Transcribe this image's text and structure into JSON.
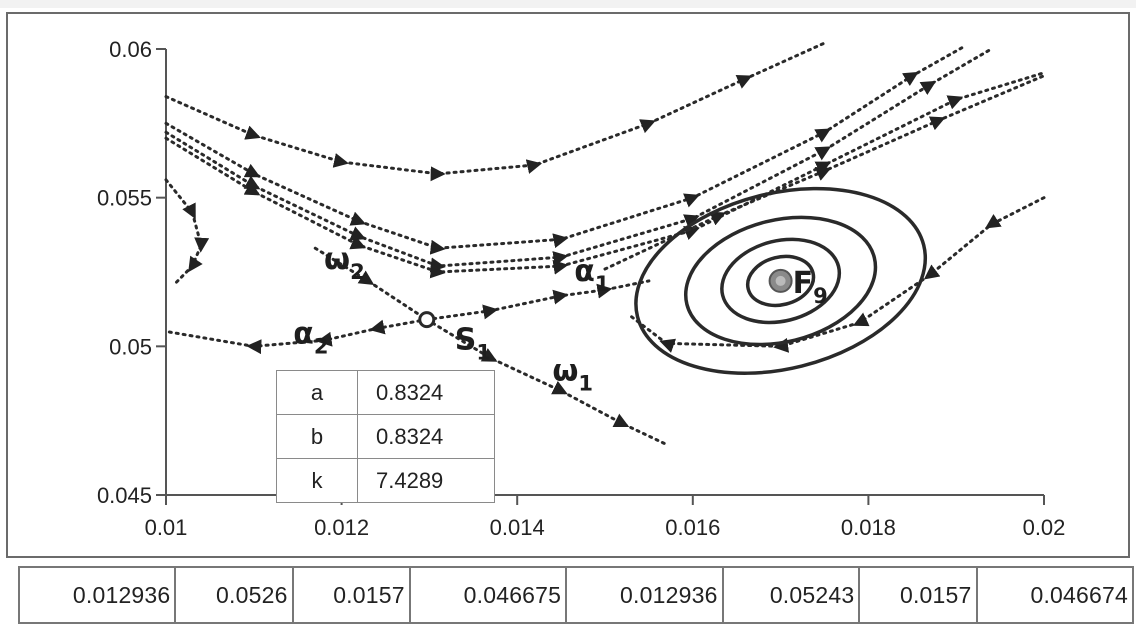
{
  "chart_data": {
    "type": "scatter",
    "xlim": [
      0.01,
      0.02
    ],
    "ylim": [
      0.045,
      0.06
    ],
    "x_ticks": [
      "0.01",
      "0.012",
      "0.014",
      "0.016",
      "0.018",
      "0.02"
    ],
    "y_ticks": [
      "0.06",
      "0.055",
      "0.05",
      "0.045"
    ],
    "grid": false,
    "saddle": {
      "label": "S",
      "subscript": "1",
      "x": 0.01297,
      "y": 0.0509
    },
    "focus": {
      "label": "F",
      "subscript": "9",
      "x": 0.017,
      "y": 0.0522
    },
    "separatrix_labels": [
      {
        "label": "ω",
        "subscript": "2",
        "x": 0.0118,
        "y": 0.0526
      },
      {
        "label": "ω",
        "subscript": "1",
        "x": 0.0144,
        "y": 0.04885
      },
      {
        "label": "α",
        "subscript": "1",
        "x": 0.01465,
        "y": 0.0522
      },
      {
        "label": "α",
        "subscript": "2",
        "x": 0.01145,
        "y": 0.0501
      }
    ],
    "trajectories": [
      {
        "name": "omega2",
        "points": [
          [
            0.0117,
            0.0533
          ],
          [
            0.0123,
            0.0522
          ],
          [
            0.01297,
            0.0509
          ]
        ]
      },
      {
        "name": "omega1",
        "points": [
          [
            0.01297,
            0.0509
          ],
          [
            0.0137,
            0.0496
          ],
          [
            0.0145,
            0.0485
          ],
          [
            0.0152,
            0.0474
          ],
          [
            0.0157,
            0.0467
          ]
        ]
      },
      {
        "name": "alpha2",
        "points": [
          [
            0.01297,
            0.0509
          ],
          [
            0.0124,
            0.0506
          ],
          [
            0.0118,
            0.0502
          ],
          [
            0.011,
            0.05
          ],
          [
            0.01,
            0.0505
          ]
        ]
      },
      {
        "name": "alpha1",
        "points": [
          [
            0.01297,
            0.0509
          ],
          [
            0.0137,
            0.0512
          ],
          [
            0.0145,
            0.0517
          ],
          [
            0.015,
            0.0519
          ],
          [
            0.0155,
            0.0522
          ]
        ]
      },
      {
        "name": "top-arc",
        "points": [
          [
            0.01,
            0.0584
          ],
          [
            0.011,
            0.0571
          ],
          [
            0.012,
            0.0562
          ],
          [
            0.0131,
            0.0558
          ],
          [
            0.0142,
            0.0561
          ],
          [
            0.0155,
            0.0575
          ],
          [
            0.0166,
            0.059
          ],
          [
            0.0175,
            0.0602
          ]
        ]
      },
      {
        "name": "valley-1",
        "points": [
          [
            0.01,
            0.0575
          ],
          [
            0.011,
            0.0558
          ],
          [
            0.0122,
            0.0542
          ],
          [
            0.0131,
            0.0533
          ],
          [
            0.0145,
            0.0536
          ],
          [
            0.016,
            0.055
          ],
          [
            0.0175,
            0.0572
          ],
          [
            0.0185,
            0.0591
          ],
          [
            0.0191,
            0.0601
          ]
        ]
      },
      {
        "name": "valley-2",
        "points": [
          [
            0.01,
            0.0572
          ],
          [
            0.011,
            0.0554
          ],
          [
            0.0122,
            0.0537
          ],
          [
            0.0131,
            0.0527
          ],
          [
            0.0145,
            0.053
          ],
          [
            0.016,
            0.0543
          ],
          [
            0.0175,
            0.0566
          ],
          [
            0.0187,
            0.0588
          ],
          [
            0.0194,
            0.06
          ]
        ]
      },
      {
        "name": "valley-3",
        "points": [
          [
            0.01,
            0.057
          ],
          [
            0.011,
            0.0552
          ],
          [
            0.0122,
            0.0534
          ],
          [
            0.0131,
            0.0525
          ],
          [
            0.0145,
            0.0527
          ],
          [
            0.016,
            0.0539
          ],
          [
            0.0175,
            0.0561
          ],
          [
            0.019,
            0.0583
          ],
          [
            0.02,
            0.0592
          ]
        ]
      },
      {
        "name": "upper-mid",
        "points": [
          [
            0.015,
            0.0526
          ],
          [
            0.0163,
            0.0544
          ],
          [
            0.0175,
            0.0559
          ],
          [
            0.0188,
            0.0576
          ],
          [
            0.02,
            0.0591
          ]
        ]
      },
      {
        "name": "left-loop",
        "points": [
          [
            0.01,
            0.0556
          ],
          [
            0.0103,
            0.0545
          ],
          [
            0.0104,
            0.0534
          ],
          [
            0.0103,
            0.0527
          ],
          [
            0.0101,
            0.0521
          ]
        ]
      },
      {
        "name": "right-descent",
        "points": [
          [
            0.02,
            0.055
          ],
          [
            0.0194,
            0.0541
          ],
          [
            0.0187,
            0.0524
          ],
          [
            0.0179,
            0.0508
          ],
          [
            0.017,
            0.05
          ],
          [
            0.0157,
            0.0501
          ],
          [
            0.0153,
            0.051
          ]
        ]
      }
    ],
    "spiral_rings": [
      {
        "rx": 0.00168,
        "ry": 0.00295
      },
      {
        "rx": 0.0011,
        "ry": 0.00205
      },
      {
        "rx": 0.00068,
        "ry": 0.00135
      },
      {
        "rx": 0.00038,
        "ry": 0.0008
      }
    ]
  },
  "param_table": [
    {
      "name": "a",
      "value": "0.8324"
    },
    {
      "name": "b",
      "value": "0.8324"
    },
    {
      "name": "k",
      "value": "7.4289"
    }
  ],
  "bottom_row": [
    "0.012936",
    "0.0526",
    "0.0157",
    "0.046675",
    "0.012936",
    "0.05243",
    "0.0157",
    "0.046674"
  ],
  "colors": {
    "curve": "#2a2a2a",
    "axis": "#555555",
    "frame": "#6b6b6b",
    "focus_fill": "#8a8a8a"
  }
}
